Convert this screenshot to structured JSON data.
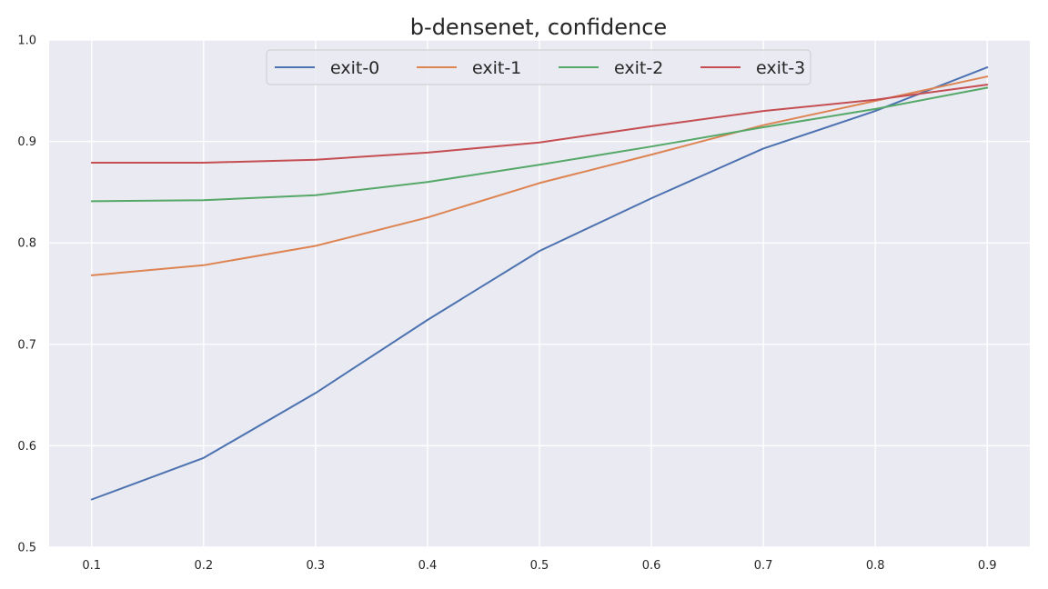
{
  "chart_data": {
    "type": "line",
    "title": "b-densenet, confidence",
    "xlabel": "",
    "ylabel": "",
    "x": [
      0.1,
      0.2,
      0.3,
      0.4,
      0.5,
      0.6,
      0.7,
      0.8,
      0.9
    ],
    "x_tick_labels": [
      "0.1",
      "0.2",
      "0.3",
      "0.4",
      "0.5",
      "0.6",
      "0.7",
      "0.8",
      "0.9"
    ],
    "y_ticks": [
      0.5,
      0.6,
      0.7,
      0.8,
      0.9,
      1.0
    ],
    "y_tick_labels": [
      "0.5",
      "0.6",
      "0.7",
      "0.8",
      "0.9",
      "1.0"
    ],
    "xlim": [
      0.062,
      0.938
    ],
    "ylim": [
      0.5,
      1.0
    ],
    "grid": true,
    "legend": {
      "placement": "top-center",
      "columns": 4
    },
    "series": [
      {
        "name": "exit-0",
        "color": "#4c72b0",
        "values": [
          0.547,
          0.588,
          0.652,
          0.724,
          0.792,
          0.844,
          0.893,
          0.93,
          0.973
        ]
      },
      {
        "name": "exit-1",
        "color": "#dd8452",
        "values": [
          0.768,
          0.778,
          0.797,
          0.825,
          0.859,
          0.887,
          0.916,
          0.94,
          0.964
        ]
      },
      {
        "name": "exit-2",
        "color": "#55a868",
        "values": [
          0.841,
          0.842,
          0.847,
          0.86,
          0.877,
          0.895,
          0.914,
          0.932,
          0.953
        ]
      },
      {
        "name": "exit-3",
        "color": "#c44e52",
        "values": [
          0.879,
          0.879,
          0.882,
          0.889,
          0.899,
          0.915,
          0.93,
          0.941,
          0.956
        ]
      }
    ]
  }
}
